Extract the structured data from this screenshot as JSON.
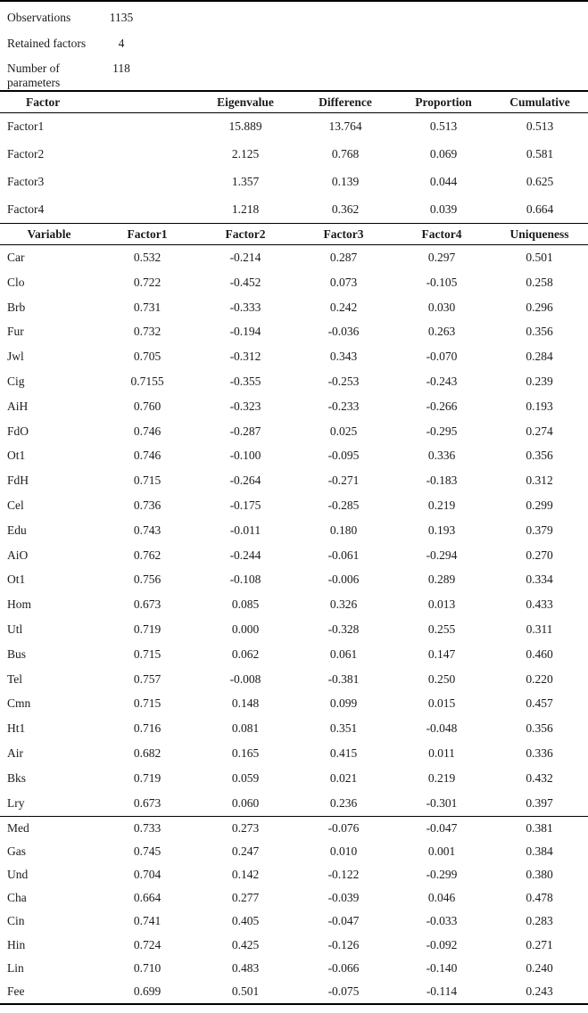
{
  "page": {
    "background": "#ffffff",
    "text_color": "#1b1b1b",
    "rule_color": "#000000"
  },
  "summary": {
    "rows": [
      {
        "label": "Observations",
        "value": "1135"
      },
      {
        "label": "Retained factors",
        "value": "4"
      },
      {
        "label": "Number of parameters",
        "value": "118"
      }
    ]
  },
  "eigen_table": {
    "headers": [
      "Factor",
      "Eigenvalue",
      "Difference",
      "Proportion",
      "Cumulative"
    ],
    "rows": [
      [
        "Factor1",
        "15.889",
        "13.764",
        "0.513",
        "0.513"
      ],
      [
        "Factor2",
        "2.125",
        "0.768",
        "0.069",
        "0.581"
      ],
      [
        "Factor3",
        "1.357",
        "0.139",
        "0.044",
        "0.625"
      ],
      [
        "Factor4",
        "1.218",
        "0.362",
        "0.039",
        "0.664"
      ]
    ]
  },
  "loadings_table": {
    "headers": [
      "Variable",
      "Factor1",
      "Factor2",
      "Factor3",
      "Factor4",
      "Uniqueness"
    ],
    "rows_block1": [
      [
        "Car",
        "0.532",
        "-0.214",
        "0.287",
        "0.297",
        "0.501"
      ],
      [
        "Clo",
        "0.722",
        "-0.452",
        "0.073",
        "-0.105",
        "0.258"
      ],
      [
        "Brb",
        "0.731",
        "-0.333",
        "0.242",
        "0.030",
        "0.296"
      ],
      [
        "Fur",
        "0.732",
        "-0.194",
        "-0.036",
        "0.263",
        "0.356"
      ],
      [
        "Jwl",
        "0.705",
        "-0.312",
        "0.343",
        "-0.070",
        "0.284"
      ],
      [
        "Cig",
        "0.7155",
        "-0.355",
        "-0.253",
        "-0.243",
        "0.239"
      ],
      [
        "AiH",
        "0.760",
        "-0.323",
        "-0.233",
        "-0.266",
        "0.193"
      ],
      [
        "FdO",
        "0.746",
        "-0.287",
        "0.025",
        "-0.295",
        "0.274"
      ],
      [
        "Ot1",
        "0.746",
        "-0.100",
        "-0.095",
        "0.336",
        "0.356"
      ],
      [
        "FdH",
        "0.715",
        "-0.264",
        "-0.271",
        "-0.183",
        "0.312"
      ],
      [
        "Cel",
        "0.736",
        "-0.175",
        "-0.285",
        "0.219",
        "0.299"
      ],
      [
        "Edu",
        "0.743",
        "-0.011",
        "0.180",
        "0.193",
        "0.379"
      ],
      [
        "AiO",
        "0.762",
        "-0.244",
        "-0.061",
        "-0.294",
        "0.270"
      ],
      [
        "Ot1",
        "0.756",
        "-0.108",
        "-0.006",
        "0.289",
        "0.334"
      ],
      [
        "Hom",
        "0.673",
        "0.085",
        "0.326",
        "0.013",
        "0.433"
      ],
      [
        "Utl",
        "0.719",
        "0.000",
        "-0.328",
        "0.255",
        "0.311"
      ],
      [
        "Bus",
        "0.715",
        "0.062",
        "0.061",
        "0.147",
        "0.460"
      ],
      [
        "Tel",
        "0.757",
        "-0.008",
        "-0.381",
        "0.250",
        "0.220"
      ],
      [
        "Cmn",
        "0.715",
        "0.148",
        "0.099",
        "0.015",
        "0.457"
      ],
      [
        "Ht1",
        "0.716",
        "0.081",
        "0.351",
        "-0.048",
        "0.356"
      ],
      [
        "Air",
        "0.682",
        "0.165",
        "0.415",
        "0.011",
        "0.336"
      ],
      [
        "Bks",
        "0.719",
        "0.059",
        "0.021",
        "0.219",
        "0.432"
      ],
      [
        "Lry",
        "0.673",
        "0.060",
        "0.236",
        "-0.301",
        "0.397"
      ]
    ],
    "rows_block2": [
      [
        "Med",
        "0.733",
        "0.273",
        "-0.076",
        "-0.047",
        "0.381"
      ],
      [
        "Gas",
        "0.745",
        "0.247",
        "0.010",
        "0.001",
        "0.384"
      ],
      [
        "Und",
        "0.704",
        "0.142",
        "-0.122",
        "-0.299",
        "0.380"
      ],
      [
        "Cha",
        "0.664",
        "0.277",
        "-0.039",
        "0.046",
        "0.478"
      ],
      [
        "Cin",
        "0.741",
        "0.405",
        "-0.047",
        "-0.033",
        "0.283"
      ],
      [
        "Hin",
        "0.724",
        "0.425",
        "-0.126",
        "-0.092",
        "0.271"
      ],
      [
        "Lin",
        "0.710",
        "0.483",
        "-0.066",
        "-0.140",
        "0.240"
      ],
      [
        "Fee",
        "0.699",
        "0.501",
        "-0.075",
        "-0.114",
        "0.243"
      ]
    ]
  }
}
